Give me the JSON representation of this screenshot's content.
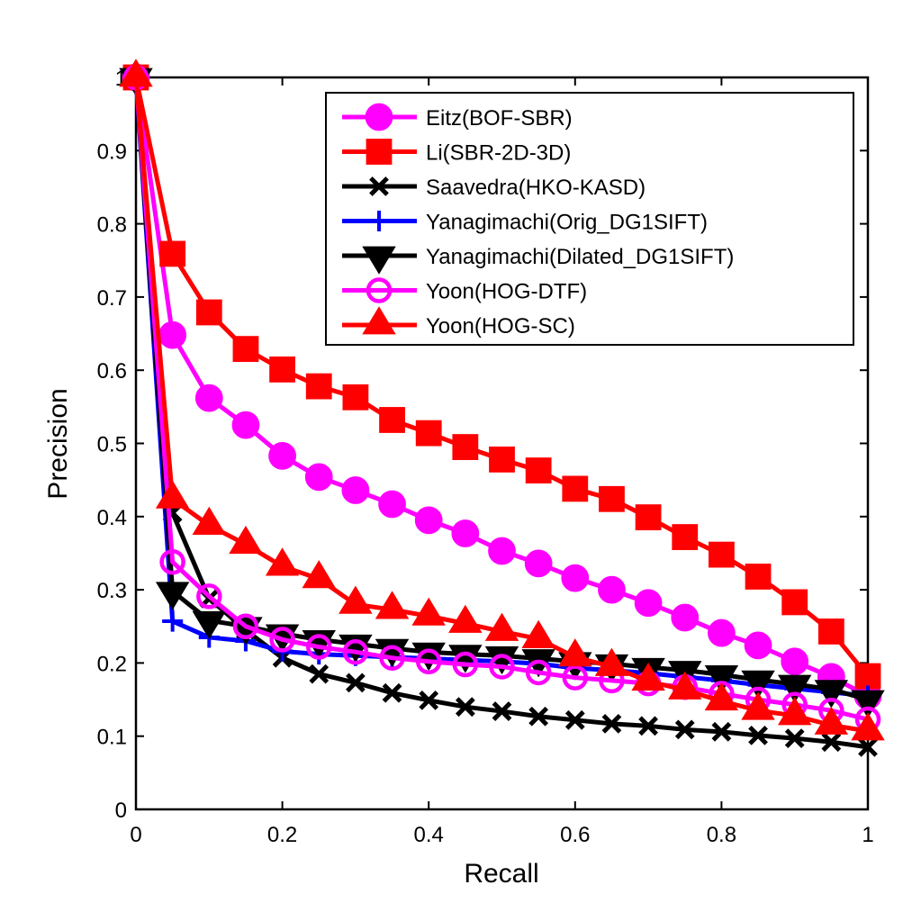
{
  "chart_data": {
    "type": "line",
    "title": "",
    "xlabel": "Recall",
    "ylabel": "Precision",
    "xlim": [
      0,
      1
    ],
    "ylim": [
      0,
      1
    ],
    "grid": false,
    "legend_position": "top-right",
    "x_ticks": [
      0,
      0.2,
      0.4,
      0.6,
      0.8,
      1
    ],
    "x_tick_labels": [
      "0",
      "0.2",
      "0.4",
      "0.6",
      "0.8",
      "1"
    ],
    "y_ticks": [
      0,
      0.1,
      0.2,
      0.3,
      0.4,
      0.5,
      0.6,
      0.7,
      0.8,
      0.9,
      1
    ],
    "y_tick_labels": [
      "0",
      "0.1",
      "0.2",
      "0.3",
      "0.4",
      "0.5",
      "0.6",
      "0.7",
      "0.8",
      "0.9",
      "1"
    ],
    "x": [
      0,
      0.05,
      0.1,
      0.15,
      0.2,
      0.25,
      0.3,
      0.35,
      0.4,
      0.45,
      0.5,
      0.55,
      0.6,
      0.65,
      0.7,
      0.75,
      0.8,
      0.85,
      0.9,
      0.95,
      1.0
    ],
    "series": [
      {
        "name": "Eitz(BOF-SBR)",
        "color": "#ff00ff",
        "marker": "filled-circle",
        "values": [
          1.0,
          0.648,
          0.562,
          0.525,
          0.483,
          0.454,
          0.436,
          0.417,
          0.395,
          0.377,
          0.353,
          0.336,
          0.316,
          0.3,
          0.282,
          0.262,
          0.241,
          0.224,
          0.202,
          0.181,
          0.155
        ]
      },
      {
        "name": "Li(SBR-2D-3D)",
        "color": "#ff0000",
        "marker": "filled-square",
        "values": [
          1.0,
          0.759,
          0.679,
          0.629,
          0.601,
          0.578,
          0.563,
          0.532,
          0.514,
          0.495,
          0.478,
          0.463,
          0.438,
          0.424,
          0.399,
          0.372,
          0.348,
          0.318,
          0.283,
          0.243,
          0.182
        ]
      },
      {
        "name": "Saavedra(HKO-KASD)",
        "color": "#000000",
        "marker": "x-cross",
        "values": [
          1.0,
          0.405,
          0.288,
          0.245,
          0.207,
          0.185,
          0.173,
          0.159,
          0.149,
          0.14,
          0.134,
          0.127,
          0.122,
          0.117,
          0.114,
          0.109,
          0.106,
          0.101,
          0.097,
          0.092,
          0.085
        ]
      },
      {
        "name": "Yanagimachi(Orig_DG1SIFT)",
        "color": "#0000ff",
        "marker": "plus",
        "values": [
          1.0,
          0.257,
          0.235,
          0.23,
          0.216,
          0.212,
          0.21,
          0.208,
          0.206,
          0.204,
          0.202,
          0.199,
          0.193,
          0.19,
          0.186,
          0.181,
          0.176,
          0.17,
          0.165,
          0.16,
          0.155
        ]
      },
      {
        "name": "Yanagimachi(Dilated_DG1SIFT)",
        "color": "#000000",
        "marker": "filled-triangle-down",
        "values": [
          1.0,
          0.298,
          0.258,
          0.25,
          0.24,
          0.232,
          0.226,
          0.22,
          0.215,
          0.212,
          0.21,
          0.206,
          0.202,
          0.199,
          0.194,
          0.19,
          0.184,
          0.177,
          0.171,
          0.164,
          0.15
        ]
      },
      {
        "name": "Yoon(HOG-DTF)",
        "color": "#ff00ff",
        "marker": "hollow-circle",
        "values": [
          1.0,
          0.338,
          0.291,
          0.25,
          0.232,
          0.222,
          0.215,
          0.207,
          0.202,
          0.198,
          0.195,
          0.187,
          0.18,
          0.176,
          0.172,
          0.167,
          0.158,
          0.15,
          0.143,
          0.135,
          0.123
        ]
      },
      {
        "name": "Yoon(HOG-SC)",
        "color": "#ff0000",
        "marker": "filled-triangle-up",
        "values": [
          1.0,
          0.424,
          0.388,
          0.362,
          0.332,
          0.315,
          0.28,
          0.273,
          0.264,
          0.254,
          0.243,
          0.233,
          0.208,
          0.195,
          0.175,
          0.163,
          0.148,
          0.135,
          0.128,
          0.115,
          0.107
        ]
      }
    ]
  }
}
